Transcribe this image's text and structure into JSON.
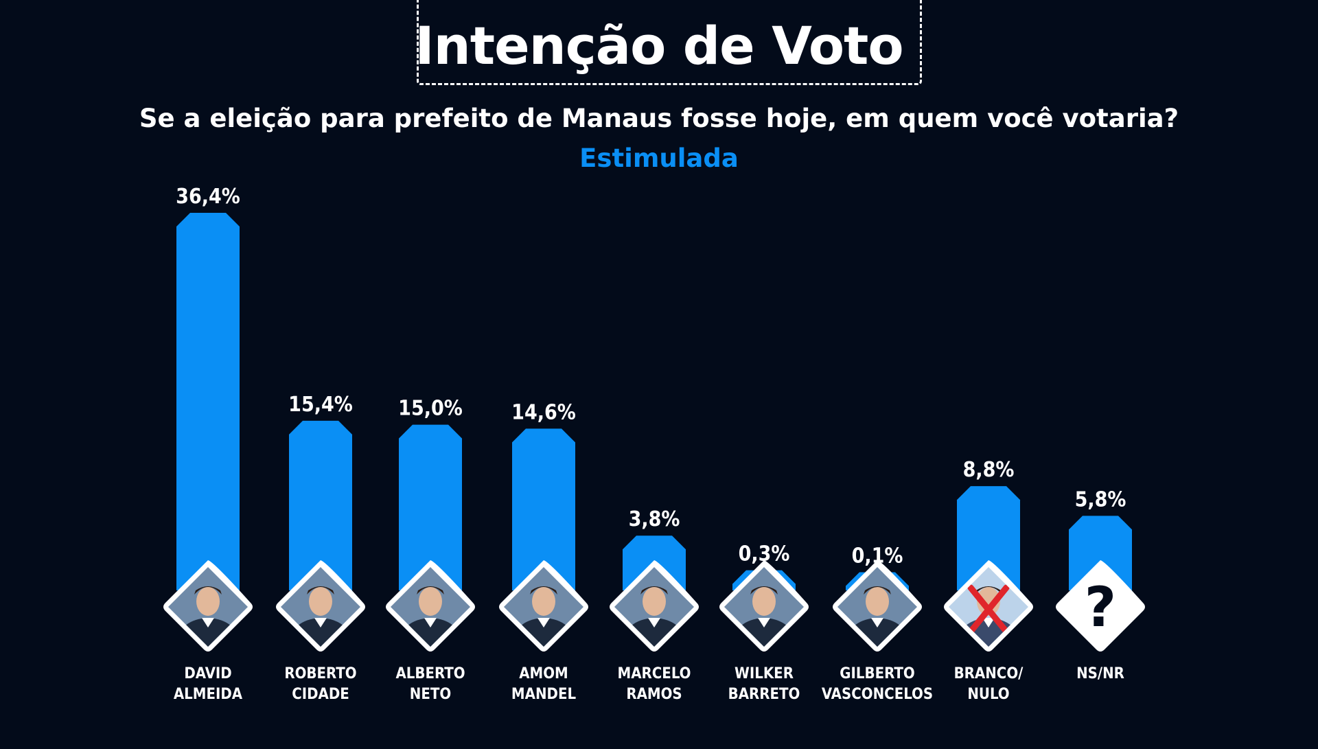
{
  "header": {
    "title": "Intenção de Voto",
    "question": "Se a eleição para prefeito de Manaus fosse hoje, em quem você votaria?",
    "subtitle": "Estimulada"
  },
  "colors": {
    "background": "#030b1a",
    "bar": "#0a8ff5",
    "subtitle": "#0a8ff5",
    "text": "#ffffff"
  },
  "chart_data": {
    "type": "bar",
    "title": "Intenção de Voto",
    "subtitle": "Estimulada",
    "unit": "%",
    "ylim": [
      0,
      40
    ],
    "grid": false,
    "legend": "none",
    "categories": [
      [
        "DAVID",
        "ALMEIDA"
      ],
      [
        "ROBERTO",
        "CIDADE"
      ],
      [
        "ALBERTO",
        "NETO"
      ],
      [
        "AMOM",
        "MANDEL"
      ],
      [
        "MARCELO",
        "RAMOS"
      ],
      [
        "WILKER",
        "BARRETO"
      ],
      [
        "GILBERTO",
        "VASCONCELOS"
      ],
      [
        "BRANCO/",
        "NULO"
      ],
      [
        "NS/NR"
      ]
    ],
    "values": [
      36.4,
      15.4,
      15.0,
      14.6,
      3.8,
      0.3,
      0.1,
      8.8,
      5.8
    ],
    "value_labels": [
      "36,4%",
      "15,4%",
      "15,0%",
      "14,6%",
      "3,8%",
      "0,3%",
      "0,1%",
      "8,8%",
      "5,8%"
    ],
    "icons": [
      "candidate-photo",
      "candidate-photo",
      "candidate-photo",
      "candidate-photo",
      "candidate-photo",
      "candidate-photo",
      "candidate-photo",
      "crossed-person-icon",
      "question-mark-icon"
    ]
  }
}
